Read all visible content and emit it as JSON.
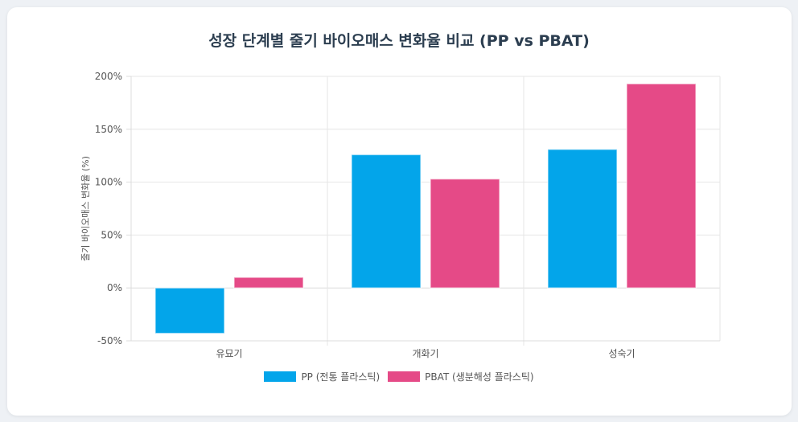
{
  "chart_data": {
    "type": "bar",
    "title": "성장 단계별 줄기 바이오매스 변화율 비교 (PP vs PBAT)",
    "xlabel": "",
    "ylabel": "줄기 바이오매스 변화율 (%)",
    "categories": [
      "유묘기",
      "개화기",
      "성숙기"
    ],
    "ylim": [
      -50,
      200
    ],
    "yticks": [
      -50,
      0,
      50,
      100,
      150,
      200
    ],
    "ytick_labels": [
      "-50%",
      "0%",
      "50%",
      "100%",
      "150%",
      "200%"
    ],
    "grid": true,
    "legend_position": "bottom",
    "series": [
      {
        "name": "PP (전통 플라스틱)",
        "values": [
          -43,
          126,
          131
        ],
        "color": "#03a5ea"
      },
      {
        "name": "PBAT (생분해성 플라스틱)",
        "values": [
          10,
          103,
          193
        ],
        "color": "#e54a87"
      }
    ]
  }
}
